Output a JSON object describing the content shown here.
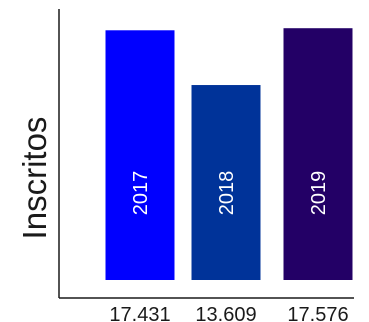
{
  "chart_data": {
    "type": "bar",
    "ylabel": "Inscritos",
    "categories": [
      "17.431",
      "13.609",
      "17.576"
    ],
    "bar_labels": [
      "2017",
      "2018",
      "2019"
    ],
    "values": [
      17431,
      13609,
      17576
    ],
    "ylim": [
      0,
      17800
    ],
    "colors": [
      "#0000ff",
      "#003399",
      "#230066"
    ],
    "grid": false,
    "legend": "none"
  }
}
